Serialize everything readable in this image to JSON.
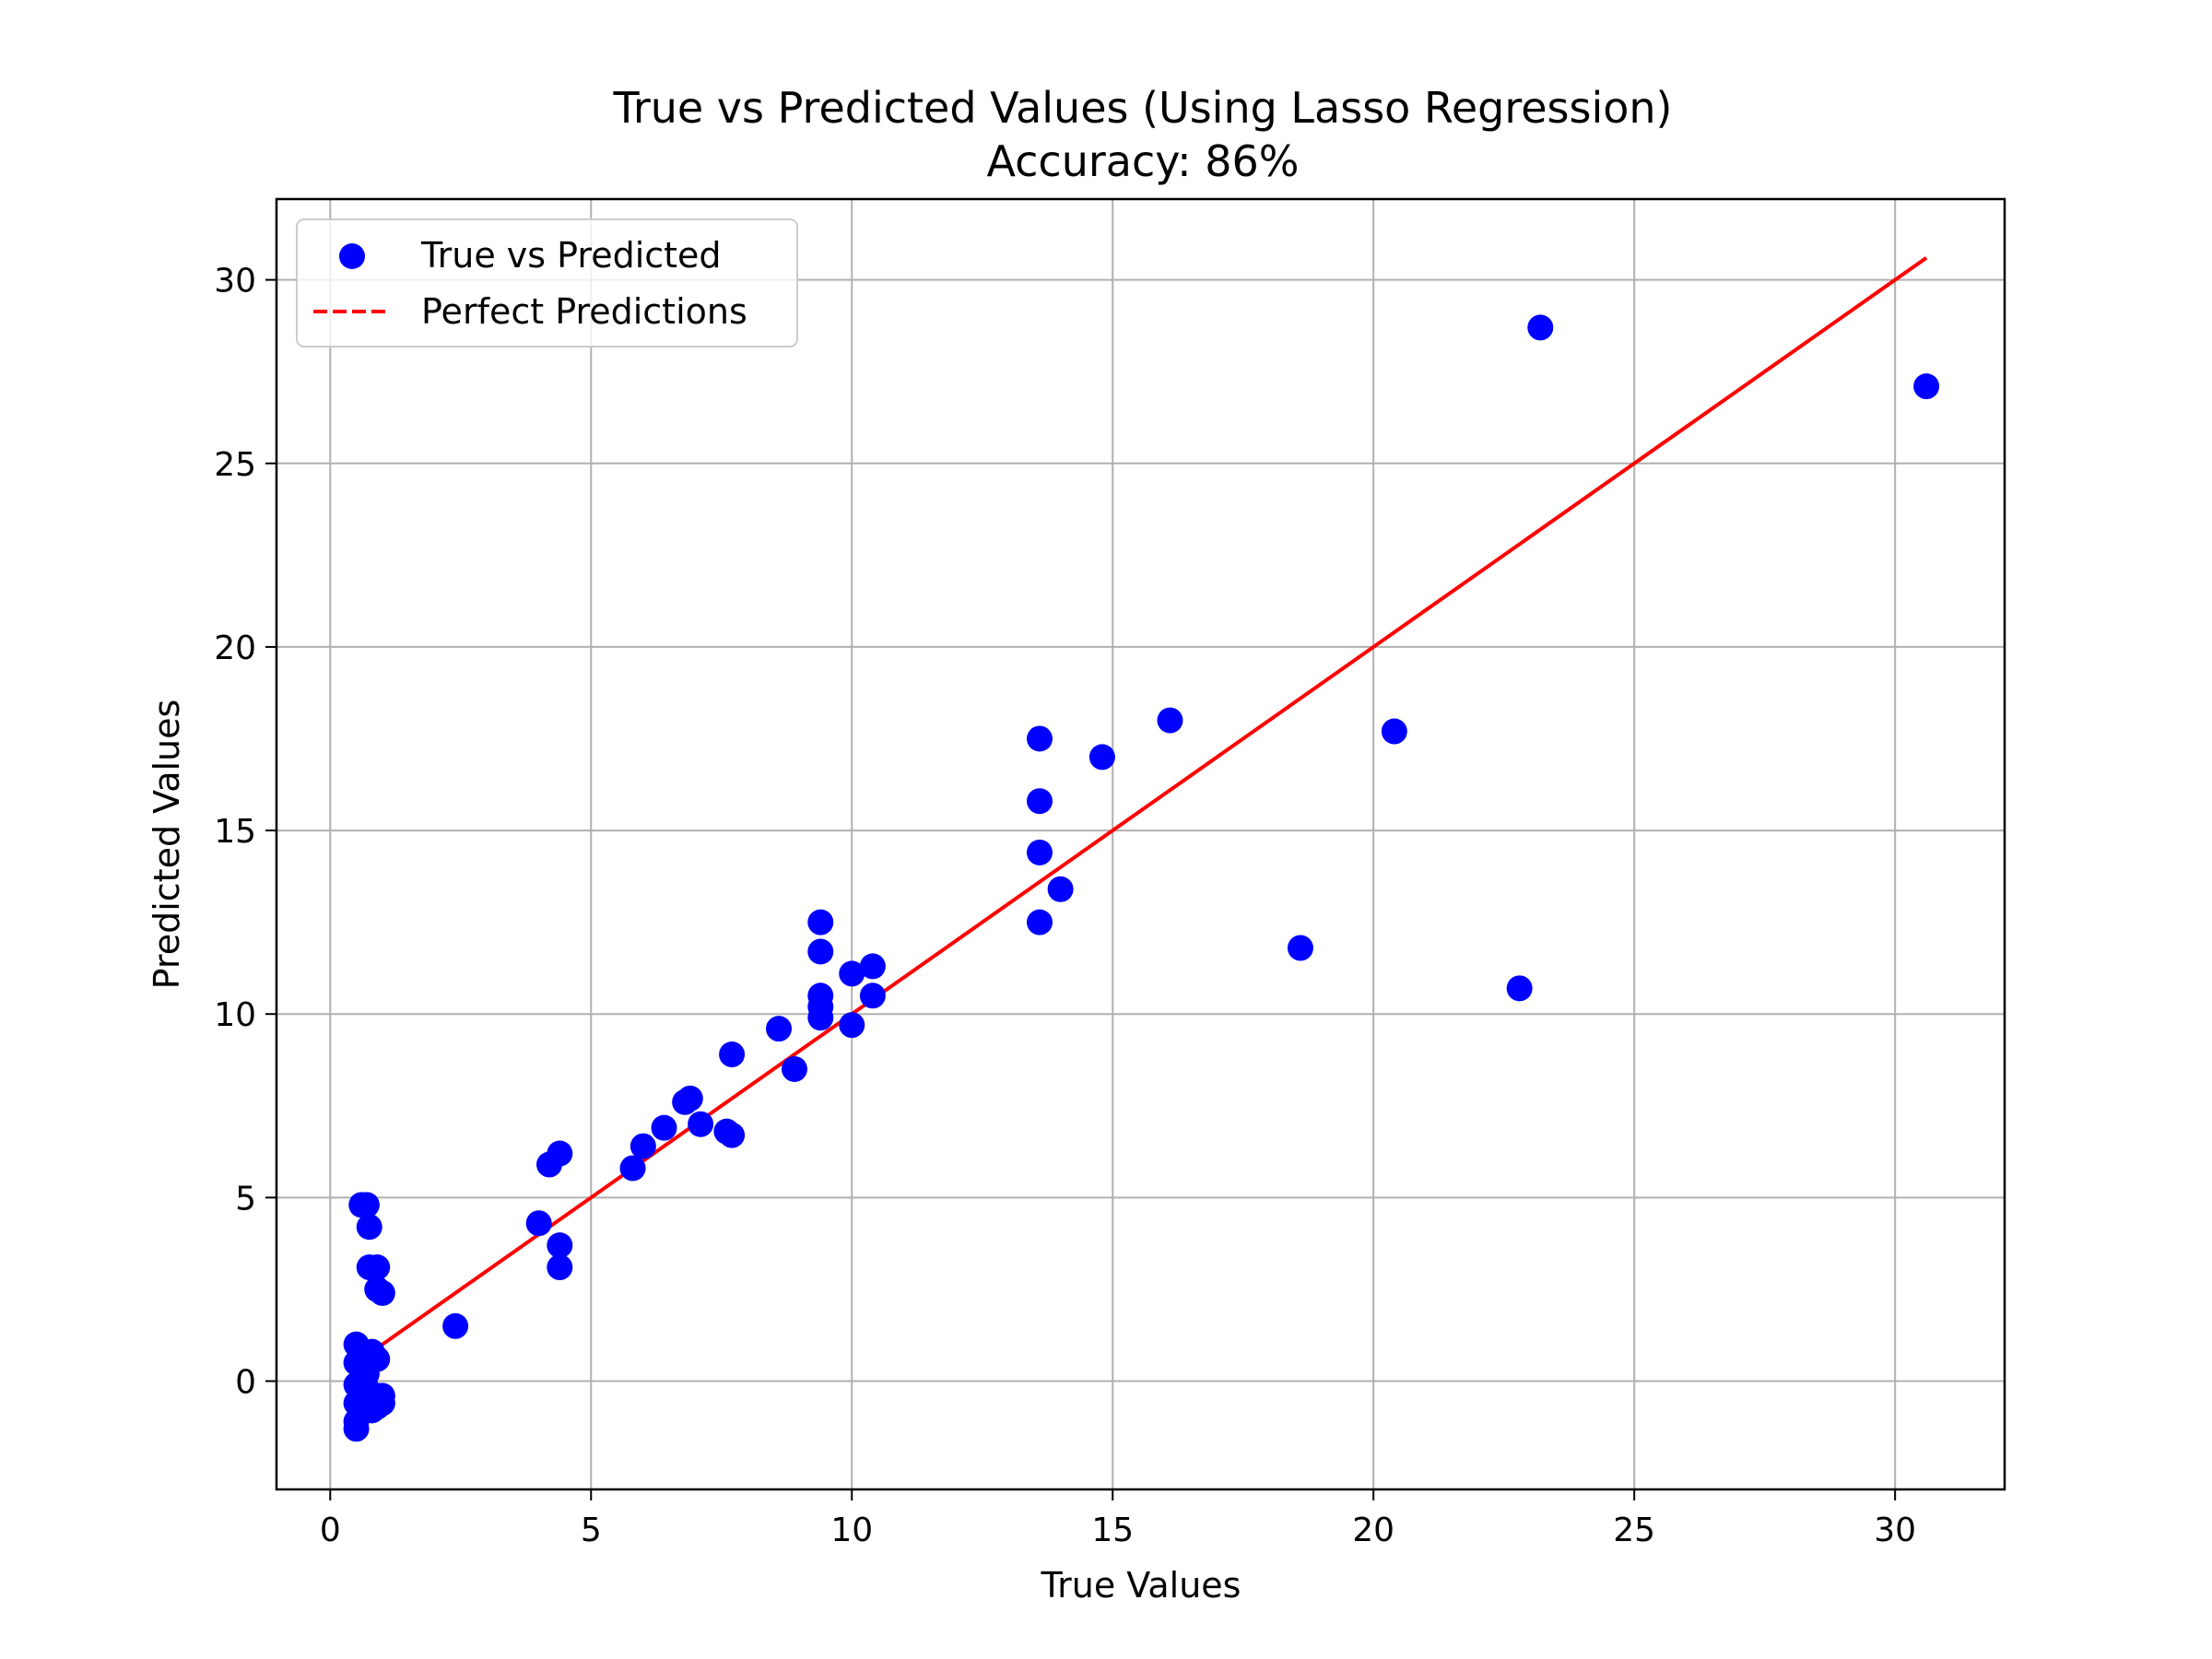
{
  "chart_data": {
    "type": "scatter",
    "title": "True vs Predicted Values (Using Lasso Regression)",
    "subtitle": "Accuracy: 86%",
    "xlabel": "True Values",
    "ylabel": "Predicted Values",
    "xlim": [
      -1.03,
      32.1
    ],
    "ylim": [
      -2.95,
      32.2
    ],
    "xticks": [
      0,
      5,
      10,
      15,
      20,
      25,
      30
    ],
    "yticks": [
      0,
      5,
      10,
      15,
      20,
      25,
      30
    ],
    "xtick_labels": [
      "0",
      "5",
      "10",
      "15",
      "20",
      "25",
      "30"
    ],
    "ytick_labels": [
      "0",
      "5",
      "10",
      "15",
      "20",
      "25",
      "30"
    ],
    "grid": true,
    "legend_position": "top-left",
    "series": [
      {
        "name": "True vs Predicted",
        "kind": "scatter",
        "color": "#0000ff",
        "points": [
          [
            0.5,
            1.0
          ],
          [
            0.5,
            0.5
          ],
          [
            0.5,
            -0.1
          ],
          [
            0.5,
            -0.6
          ],
          [
            0.5,
            -1.1
          ],
          [
            0.5,
            -1.3
          ],
          [
            0.6,
            4.8
          ],
          [
            0.6,
            0.4
          ],
          [
            0.6,
            -0.3
          ],
          [
            0.6,
            -0.6
          ],
          [
            0.7,
            4.8
          ],
          [
            0.7,
            0.2
          ],
          [
            0.7,
            -0.2
          ],
          [
            0.7,
            -0.7
          ],
          [
            0.75,
            4.2
          ],
          [
            0.75,
            3.1
          ],
          [
            0.8,
            0.8
          ],
          [
            0.8,
            -0.4
          ],
          [
            0.8,
            -0.8
          ],
          [
            0.9,
            3.1
          ],
          [
            0.9,
            2.5
          ],
          [
            0.9,
            0.6
          ],
          [
            0.9,
            -0.4
          ],
          [
            0.9,
            -0.7
          ],
          [
            1.0,
            2.4
          ],
          [
            1.0,
            -0.4
          ],
          [
            1.0,
            -0.6
          ],
          [
            2.4,
            1.5
          ],
          [
            4.0,
            4.3
          ],
          [
            4.2,
            5.9
          ],
          [
            4.4,
            6.2
          ],
          [
            4.4,
            3.7
          ],
          [
            4.4,
            3.1
          ],
          [
            5.8,
            5.8
          ],
          [
            6.0,
            6.4
          ],
          [
            6.4,
            6.9
          ],
          [
            6.8,
            7.6
          ],
          [
            6.9,
            7.7
          ],
          [
            7.1,
            7.0
          ],
          [
            7.6,
            6.8
          ],
          [
            7.7,
            6.7
          ],
          [
            7.7,
            8.9
          ],
          [
            8.6,
            9.6
          ],
          [
            8.9,
            8.5
          ],
          [
            9.4,
            12.5
          ],
          [
            9.4,
            11.7
          ],
          [
            9.4,
            10.5
          ],
          [
            9.4,
            10.2
          ],
          [
            9.4,
            9.9
          ],
          [
            10.0,
            11.1
          ],
          [
            10.0,
            9.7
          ],
          [
            10.4,
            11.3
          ],
          [
            10.4,
            10.5
          ],
          [
            13.6,
            17.5
          ],
          [
            13.6,
            15.8
          ],
          [
            13.6,
            14.4
          ],
          [
            13.6,
            12.5
          ],
          [
            14.0,
            13.4
          ],
          [
            14.8,
            17.0
          ],
          [
            16.1,
            18.0
          ],
          [
            18.6,
            11.8
          ],
          [
            20.4,
            17.7
          ],
          [
            22.8,
            10.7
          ],
          [
            23.2,
            28.7
          ],
          [
            30.6,
            27.1
          ]
        ]
      },
      {
        "name": "Perfect Predictions",
        "kind": "line",
        "color": "#ff0000",
        "dash": "dashed",
        "x": [
          0.5,
          30.6
        ],
        "y": [
          0.5,
          30.6
        ]
      }
    ]
  }
}
